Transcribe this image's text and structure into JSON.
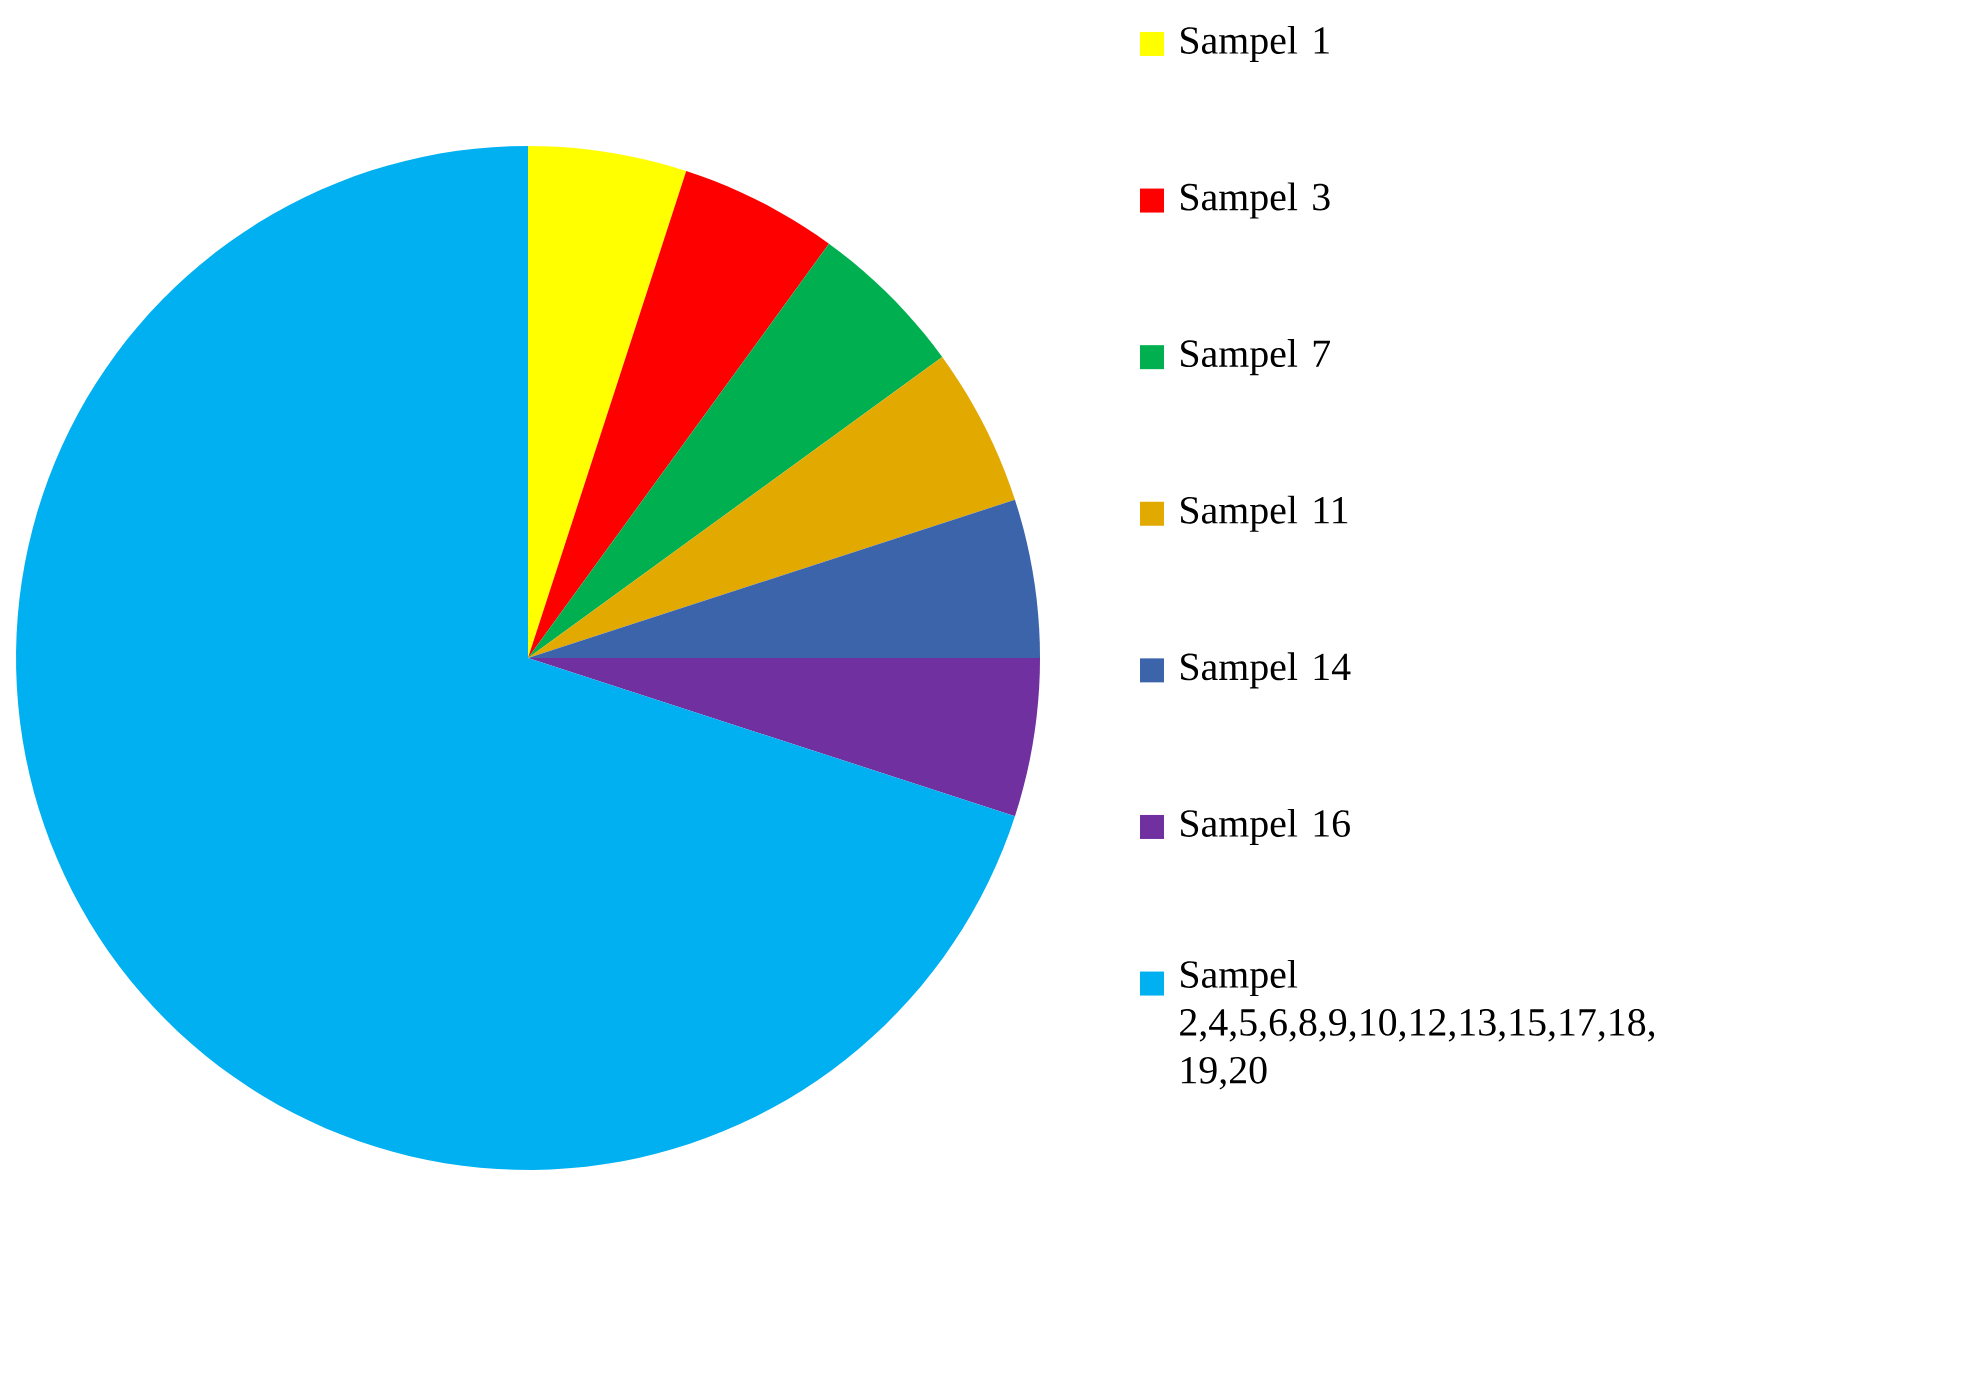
{
  "chart_data": {
    "type": "pie",
    "legend": "right",
    "categories": [
      "Sampel 1",
      "Sampel 3",
      "Sampel 7",
      "Sampel 11",
      "Sampel 14",
      "Sampel 16",
      "Sampel 2,4,5,6,8,9,10,12,13,15,17,18, 19,20"
    ],
    "values": [
      5,
      5,
      5,
      5,
      5,
      5,
      70
    ],
    "colors": [
      "#ffff00",
      "#ff0000",
      "#00b050",
      "#e2a900",
      "#3c64ab",
      "#7030a0",
      "#00b0f0"
    ]
  }
}
